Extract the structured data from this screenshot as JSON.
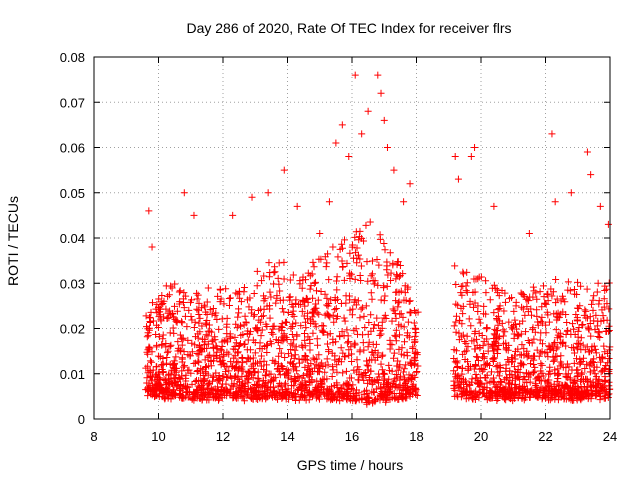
{
  "chart_data": {
    "type": "scatter",
    "title": "Day 286 of 2020, Rate Of TEC Index for receiver flrs",
    "xlabel": "GPS time / hours",
    "ylabel": "ROTI / TECUs",
    "xlim": [
      8,
      24
    ],
    "ylim": [
      0,
      0.08
    ],
    "xticks": [
      8,
      10,
      12,
      14,
      16,
      18,
      20,
      22,
      24
    ],
    "xtick_labels": [
      "8",
      "10",
      "12",
      "14",
      "16",
      "18",
      "20",
      "22",
      "24"
    ],
    "yticks": [
      0,
      0.01,
      0.02,
      0.03,
      0.04,
      0.05,
      0.06,
      0.07,
      0.08
    ],
    "ytick_labels": [
      "0",
      "0.01",
      "0.02",
      "0.03",
      "0.04",
      "0.05",
      "0.06",
      "0.07",
      "0.08"
    ],
    "grid": true,
    "marker": "+",
    "color": "#ff0000",
    "data_gap_hours": [
      18.05,
      19.15
    ],
    "series": [
      {
        "name": "flrs",
        "notable_points": [
          {
            "x": 9.7,
            "y": 0.046
          },
          {
            "x": 9.8,
            "y": 0.038
          },
          {
            "x": 10.8,
            "y": 0.05
          },
          {
            "x": 11.1,
            "y": 0.045
          },
          {
            "x": 12.3,
            "y": 0.045
          },
          {
            "x": 12.9,
            "y": 0.049
          },
          {
            "x": 13.4,
            "y": 0.05
          },
          {
            "x": 13.9,
            "y": 0.055
          },
          {
            "x": 14.3,
            "y": 0.047
          },
          {
            "x": 15.0,
            "y": 0.041
          },
          {
            "x": 15.3,
            "y": 0.048
          },
          {
            "x": 15.5,
            "y": 0.061
          },
          {
            "x": 15.7,
            "y": 0.065
          },
          {
            "x": 15.9,
            "y": 0.058
          },
          {
            "x": 16.1,
            "y": 0.076
          },
          {
            "x": 16.3,
            "y": 0.063
          },
          {
            "x": 16.5,
            "y": 0.068
          },
          {
            "x": 16.8,
            "y": 0.076
          },
          {
            "x": 16.9,
            "y": 0.072
          },
          {
            "x": 17.0,
            "y": 0.066
          },
          {
            "x": 17.1,
            "y": 0.06
          },
          {
            "x": 17.3,
            "y": 0.055
          },
          {
            "x": 17.6,
            "y": 0.048
          },
          {
            "x": 17.8,
            "y": 0.052
          },
          {
            "x": 19.2,
            "y": 0.058
          },
          {
            "x": 19.3,
            "y": 0.053
          },
          {
            "x": 19.7,
            "y": 0.058
          },
          {
            "x": 19.8,
            "y": 0.06
          },
          {
            "x": 20.4,
            "y": 0.047
          },
          {
            "x": 21.5,
            "y": 0.041
          },
          {
            "x": 22.2,
            "y": 0.063
          },
          {
            "x": 22.3,
            "y": 0.048
          },
          {
            "x": 22.8,
            "y": 0.05
          },
          {
            "x": 23.3,
            "y": 0.059
          },
          {
            "x": 23.4,
            "y": 0.054
          },
          {
            "x": 23.7,
            "y": 0.047
          },
          {
            "x": 23.95,
            "y": 0.043
          }
        ],
        "envelope": [
          {
            "x": 9.6,
            "baseline": 0.006,
            "typical_max": 0.025
          },
          {
            "x": 10.5,
            "baseline": 0.005,
            "typical_max": 0.03
          },
          {
            "x": 11.5,
            "baseline": 0.005,
            "typical_max": 0.028
          },
          {
            "x": 12.5,
            "baseline": 0.005,
            "typical_max": 0.03
          },
          {
            "x": 13.5,
            "baseline": 0.005,
            "typical_max": 0.035
          },
          {
            "x": 14.5,
            "baseline": 0.005,
            "typical_max": 0.032
          },
          {
            "x": 15.5,
            "baseline": 0.005,
            "typical_max": 0.04
          },
          {
            "x": 16.5,
            "baseline": 0.004,
            "typical_max": 0.045
          },
          {
            "x": 17.5,
            "baseline": 0.005,
            "typical_max": 0.035
          },
          {
            "x": 18.0,
            "baseline": 0.006,
            "typical_max": 0.025
          },
          {
            "x": 19.2,
            "baseline": 0.005,
            "typical_max": 0.035
          },
          {
            "x": 20.0,
            "baseline": 0.005,
            "typical_max": 0.032
          },
          {
            "x": 21.0,
            "baseline": 0.005,
            "typical_max": 0.028
          },
          {
            "x": 22.0,
            "baseline": 0.005,
            "typical_max": 0.03
          },
          {
            "x": 23.0,
            "baseline": 0.005,
            "typical_max": 0.03
          },
          {
            "x": 24.0,
            "baseline": 0.005,
            "typical_max": 0.03
          }
        ],
        "dense_points_per_hour": 210
      }
    ]
  }
}
